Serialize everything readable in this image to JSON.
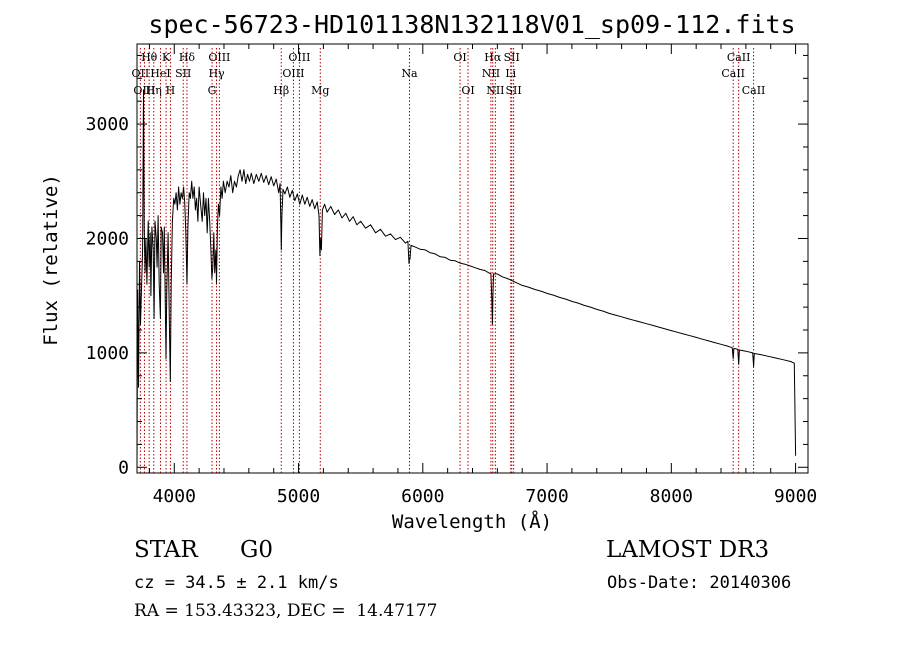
{
  "chart_data": {
    "type": "line",
    "title": "spec-56723-HD101138N132118V01_sp09-112.fits",
    "xlabel": "Wavelength (Å)",
    "ylabel": "Flux (relative)",
    "xlim": [
      3700,
      9100
    ],
    "ylim": [
      -50,
      3700
    ],
    "x_ticks": [
      4000,
      5000,
      6000,
      7000,
      8000,
      9000
    ],
    "y_ticks": [
      0,
      1000,
      2000,
      3000
    ],
    "grid": false,
    "series": [
      {
        "name": "flux",
        "points": [
          [
            3700,
            0
          ],
          [
            3705,
            1550
          ],
          [
            3712,
            700
          ],
          [
            3720,
            1800
          ],
          [
            3728,
            1250
          ],
          [
            3735,
            1500
          ],
          [
            3745,
            1900
          ],
          [
            3752,
            3300
          ],
          [
            3758,
            2100
          ],
          [
            3765,
            1700
          ],
          [
            3772,
            2000
          ],
          [
            3780,
            1600
          ],
          [
            3790,
            2150
          ],
          [
            3798,
            1750
          ],
          [
            3806,
            2050
          ],
          [
            3812,
            1500
          ],
          [
            3820,
            2100
          ],
          [
            3830,
            1900
          ],
          [
            3838,
            1300
          ],
          [
            3845,
            2150
          ],
          [
            3855,
            2000
          ],
          [
            3862,
            1750
          ],
          [
            3870,
            2200
          ],
          [
            3879,
            1600
          ],
          [
            3888,
            1300
          ],
          [
            3895,
            2100
          ],
          [
            3905,
            2050
          ],
          [
            3913,
            1700
          ],
          [
            3920,
            2100
          ],
          [
            3933,
            950
          ],
          [
            3940,
            1550
          ],
          [
            3950,
            2050
          ],
          [
            3960,
            1300
          ],
          [
            3968,
            750
          ],
          [
            3975,
            1600
          ],
          [
            3985,
            2150
          ],
          [
            3995,
            2350
          ],
          [
            4005,
            2300
          ],
          [
            4015,
            2400
          ],
          [
            4025,
            2250
          ],
          [
            4035,
            2450
          ],
          [
            4045,
            2300
          ],
          [
            4055,
            2400
          ],
          [
            4065,
            2350
          ],
          [
            4075,
            2450
          ],
          [
            4085,
            2300
          ],
          [
            4093,
            2050
          ],
          [
            4102,
            1600
          ],
          [
            4110,
            2100
          ],
          [
            4120,
            2400
          ],
          [
            4130,
            2350
          ],
          [
            4140,
            2500
          ],
          [
            4150,
            2350
          ],
          [
            4160,
            2450
          ],
          [
            4170,
            2250
          ],
          [
            4180,
            2350
          ],
          [
            4190,
            2150
          ],
          [
            4200,
            2450
          ],
          [
            4212,
            2300
          ],
          [
            4225,
            2150
          ],
          [
            4235,
            2400
          ],
          [
            4245,
            2200
          ],
          [
            4255,
            2350
          ],
          [
            4265,
            2050
          ],
          [
            4275,
            2350
          ],
          [
            4285,
            2150
          ],
          [
            4295,
            1900
          ],
          [
            4303,
            1650
          ],
          [
            4310,
            1750
          ],
          [
            4318,
            2050
          ],
          [
            4325,
            1700
          ],
          [
            4335,
            1900
          ],
          [
            4340,
            1600
          ],
          [
            4347,
            2100
          ],
          [
            4355,
            2300
          ],
          [
            4365,
            2200
          ],
          [
            4375,
            2450
          ],
          [
            4385,
            2350
          ],
          [
            4395,
            2500
          ],
          [
            4410,
            2400
          ],
          [
            4425,
            2500
          ],
          [
            4440,
            2450
          ],
          [
            4455,
            2550
          ],
          [
            4470,
            2400
          ],
          [
            4485,
            2500
          ],
          [
            4500,
            2450
          ],
          [
            4515,
            2550
          ],
          [
            4530,
            2600
          ],
          [
            4545,
            2500
          ],
          [
            4560,
            2600
          ],
          [
            4575,
            2480
          ],
          [
            4590,
            2560
          ],
          [
            4605,
            2500
          ],
          [
            4620,
            2570
          ],
          [
            4640,
            2480
          ],
          [
            4660,
            2560
          ],
          [
            4680,
            2500
          ],
          [
            4700,
            2570
          ],
          [
            4720,
            2490
          ],
          [
            4740,
            2550
          ],
          [
            4760,
            2470
          ],
          [
            4780,
            2540
          ],
          [
            4800,
            2460
          ],
          [
            4820,
            2520
          ],
          [
            4840,
            2400
          ],
          [
            4852,
            2480
          ],
          [
            4857,
            2150
          ],
          [
            4861,
            1900
          ],
          [
            4866,
            2200
          ],
          [
            4875,
            2430
          ],
          [
            4890,
            2390
          ],
          [
            4910,
            2450
          ],
          [
            4930,
            2360
          ],
          [
            4950,
            2420
          ],
          [
            4970,
            2330
          ],
          [
            4990,
            2390
          ],
          [
            5010,
            2300
          ],
          [
            5030,
            2380
          ],
          [
            5050,
            2300
          ],
          [
            5070,
            2360
          ],
          [
            5090,
            2280
          ],
          [
            5110,
            2340
          ],
          [
            5130,
            2260
          ],
          [
            5150,
            2320
          ],
          [
            5165,
            2200
          ],
          [
            5172,
            1850
          ],
          [
            5178,
            2000
          ],
          [
            5184,
            1900
          ],
          [
            5192,
            2250
          ],
          [
            5210,
            2300
          ],
          [
            5230,
            2230
          ],
          [
            5260,
            2280
          ],
          [
            5290,
            2210
          ],
          [
            5320,
            2250
          ],
          [
            5350,
            2180
          ],
          [
            5380,
            2220
          ],
          [
            5410,
            2150
          ],
          [
            5440,
            2190
          ],
          [
            5470,
            2120
          ],
          [
            5500,
            2150
          ],
          [
            5540,
            2090
          ],
          [
            5580,
            2120
          ],
          [
            5620,
            2050
          ],
          [
            5660,
            2080
          ],
          [
            5700,
            2020
          ],
          [
            5740,
            2040
          ],
          [
            5780,
            1990
          ],
          [
            5820,
            2010
          ],
          [
            5860,
            1960
          ],
          [
            5880,
            1975
          ],
          [
            5889,
            1780
          ],
          [
            5893,
            1830
          ],
          [
            5897,
            1820
          ],
          [
            5905,
            1940
          ],
          [
            5940,
            1925
          ],
          [
            5980,
            1905
          ],
          [
            6020,
            1900
          ],
          [
            6060,
            1875
          ],
          [
            6100,
            1865
          ],
          [
            6140,
            1840
          ],
          [
            6180,
            1835
          ],
          [
            6220,
            1810
          ],
          [
            6260,
            1805
          ],
          [
            6300,
            1785
          ],
          [
            6340,
            1775
          ],
          [
            6380,
            1760
          ],
          [
            6420,
            1745
          ],
          [
            6460,
            1730
          ],
          [
            6500,
            1720
          ],
          [
            6530,
            1700
          ],
          [
            6548,
            1690
          ],
          [
            6556,
            1450
          ],
          [
            6560,
            1250
          ],
          [
            6564,
            1500
          ],
          [
            6570,
            1690
          ],
          [
            6600,
            1690
          ],
          [
            6640,
            1665
          ],
          [
            6680,
            1650
          ],
          [
            6720,
            1630
          ],
          [
            6760,
            1610
          ],
          [
            6800,
            1590
          ],
          [
            6850,
            1575
          ],
          [
            6900,
            1555
          ],
          [
            6950,
            1540
          ],
          [
            7000,
            1520
          ],
          [
            7050,
            1505
          ],
          [
            7100,
            1485
          ],
          [
            7150,
            1470
          ],
          [
            7200,
            1450
          ],
          [
            7250,
            1435
          ],
          [
            7300,
            1415
          ],
          [
            7350,
            1400
          ],
          [
            7400,
            1380
          ],
          [
            7450,
            1365
          ],
          [
            7500,
            1345
          ],
          [
            7550,
            1330
          ],
          [
            7600,
            1315
          ],
          [
            7650,
            1300
          ],
          [
            7700,
            1285
          ],
          [
            7750,
            1270
          ],
          [
            7800,
            1255
          ],
          [
            7850,
            1240
          ],
          [
            7900,
            1225
          ],
          [
            7950,
            1210
          ],
          [
            8000,
            1195
          ],
          [
            8050,
            1180
          ],
          [
            8100,
            1165
          ],
          [
            8150,
            1150
          ],
          [
            8200,
            1135
          ],
          [
            8250,
            1120
          ],
          [
            8300,
            1105
          ],
          [
            8350,
            1090
          ],
          [
            8400,
            1075
          ],
          [
            8450,
            1060
          ],
          [
            8490,
            1045
          ],
          [
            8498,
            950
          ],
          [
            8504,
            1040
          ],
          [
            8535,
            1030
          ],
          [
            8542,
            900
          ],
          [
            8548,
            1025
          ],
          [
            8600,
            1015
          ],
          [
            8655,
            1000
          ],
          [
            8662,
            880
          ],
          [
            8668,
            995
          ],
          [
            8720,
            985
          ],
          [
            8780,
            970
          ],
          [
            8840,
            955
          ],
          [
            8900,
            940
          ],
          [
            8960,
            925
          ],
          [
            8990,
            910
          ],
          [
            9000,
            100
          ]
        ]
      }
    ],
    "line_markers": [
      {
        "label": "Hθ",
        "wavelength": 3798,
        "row": 1
      },
      {
        "label": "OII",
        "wavelength": 3727,
        "row": 2
      },
      {
        "label": "OIII",
        "wavelength": 3760,
        "row": 3
      },
      {
        "label": "K",
        "wavelength": 3934,
        "row": 1
      },
      {
        "label": "HeI",
        "wavelength": 3889,
        "row": 2
      },
      {
        "label": "Hη",
        "wavelength": 3835,
        "row": 3
      },
      {
        "label": "SII",
        "wavelength": 4072,
        "row": 2
      },
      {
        "label": "H",
        "wavelength": 3969,
        "row": 3
      },
      {
        "label": "Hδ",
        "wavelength": 4102,
        "row": 1
      },
      {
        "label": "OIII",
        "wavelength": 4363,
        "row": 1
      },
      {
        "label": "Hγ",
        "wavelength": 4340,
        "row": 2
      },
      {
        "label": "G",
        "wavelength": 4304,
        "row": 3
      },
      {
        "label": "Hβ",
        "wavelength": 4861,
        "row": 3
      },
      {
        "label": "OIII",
        "wavelength": 5007,
        "row": 1
      },
      {
        "label": "OIII",
        "wavelength": 4959,
        "row": 2
      },
      {
        "label": "Mg",
        "wavelength": 5175,
        "row": 3
      },
      {
        "label": "Na",
        "wavelength": 5893,
        "row": 2
      },
      {
        "label": "OI",
        "wavelength": 6300,
        "row": 1
      },
      {
        "label": "OI",
        "wavelength": 6364,
        "row": 3
      },
      {
        "label": "Hα",
        "wavelength": 6563,
        "row": 1
      },
      {
        "label": "SII",
        "wavelength": 6716,
        "row": 1
      },
      {
        "label": "NII",
        "wavelength": 6548,
        "row": 2
      },
      {
        "label": "Li",
        "wavelength": 6708,
        "row": 2
      },
      {
        "label": "NII",
        "wavelength": 6584,
        "row": 3
      },
      {
        "label": "SII",
        "wavelength": 6731,
        "row": 3
      },
      {
        "label": "CaII",
        "wavelength": 8542,
        "row": 1
      },
      {
        "label": "CaII",
        "wavelength": 8498,
        "row": 2
      },
      {
        "label": "CaII",
        "wavelength": 8662,
        "row": 3
      }
    ]
  },
  "info": {
    "class_label": "STAR",
    "subclass": "G0",
    "survey": "LAMOST DR3",
    "redshift_text": "cz = 34.5 ± 2.1 km/s",
    "obs_date_text": "Obs-Date: 20140306",
    "coords_text": "RA = 153.43323, DEC =  14.47177"
  },
  "colors": {
    "axis": "#000000",
    "spectrum": "#000000",
    "marker_line": "#b80000"
  }
}
